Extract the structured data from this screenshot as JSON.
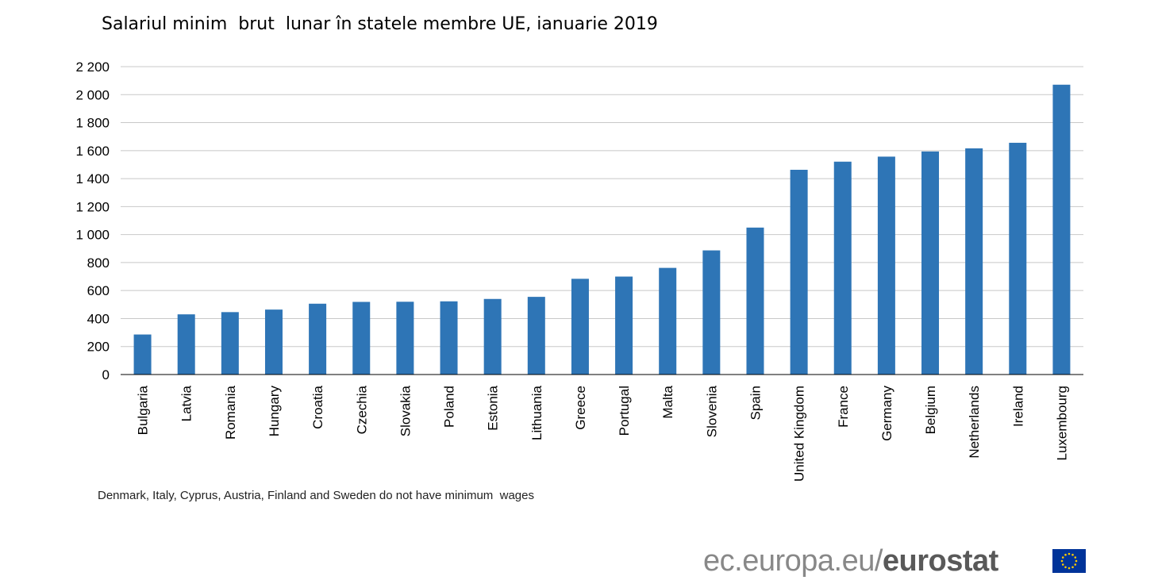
{
  "title": "Salariul minim  brut  lunar în statele membre UE, ianuarie 2019",
  "footnote": "Denmark, Italy, Cyprus, Austria, Finland and Sweden do not have minimum  wages",
  "brand": {
    "prefix": "ec.europa.eu/",
    "suffix": "eurostat",
    "flag_icon": "eu-flag-icon"
  },
  "colors": {
    "bar": "#2e75b6",
    "grid": "#c8c8c8",
    "axis": "#000000",
    "flag_blue": "#003399",
    "flag_star": "#ffcc00"
  },
  "chart_data": {
    "type": "bar",
    "title": "Salariul minim  brut  lunar în statele membre UE, ianuarie 2019",
    "xlabel": "",
    "ylabel": "",
    "ylim": [
      0,
      2200
    ],
    "yticks": [
      0,
      200,
      400,
      600,
      800,
      1000,
      1200,
      1400,
      1600,
      1800,
      2000,
      2200
    ],
    "ytick_labels": [
      "0",
      "200",
      "400",
      "600",
      "800",
      "1 000",
      "1 200",
      "1 400",
      "1 600",
      "1 800",
      "2 000",
      "2 200"
    ],
    "grid": true,
    "categories": [
      "Bulgaria",
      "Latvia",
      "Romania",
      "Hungary",
      "Croatia",
      "Czechia",
      "Slovakia",
      "Poland",
      "Estonia",
      "Lithuania",
      "Greece",
      "Portugal",
      "Malta",
      "Slovenia",
      "Spain",
      "United Kingdom",
      "France",
      "Germany",
      "Belgium",
      "Netherlands",
      "Ireland",
      "Luxembourg"
    ],
    "values": [
      286,
      430,
      446,
      464,
      506,
      519,
      520,
      523,
      540,
      555,
      684,
      700,
      762,
      887,
      1050,
      1463,
      1521,
      1557,
      1594,
      1616,
      1656,
      2071
    ]
  }
}
